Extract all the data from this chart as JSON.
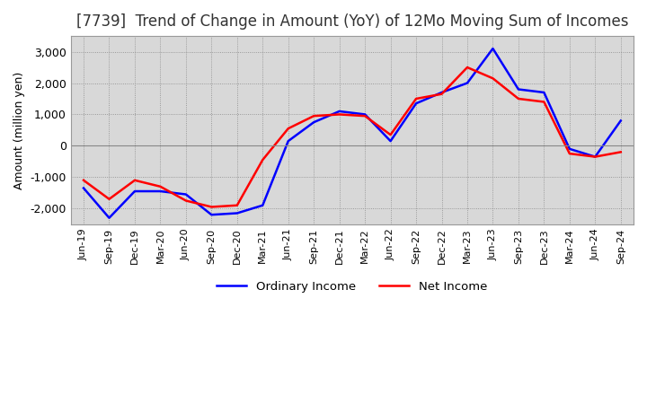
{
  "title": "[7739]  Trend of Change in Amount (YoY) of 12Mo Moving Sum of Incomes",
  "ylabel": "Amount (million yen)",
  "x_labels": [
    "Jun-19",
    "Sep-19",
    "Dec-19",
    "Mar-20",
    "Jun-20",
    "Sep-20",
    "Dec-20",
    "Mar-21",
    "Jun-21",
    "Sep-21",
    "Dec-21",
    "Mar-22",
    "Jun-22",
    "Sep-22",
    "Dec-22",
    "Mar-23",
    "Jun-23",
    "Sep-23",
    "Dec-23",
    "Mar-24",
    "Jun-24",
    "Sep-24"
  ],
  "ordinary_income": [
    -1350,
    -2300,
    -1450,
    -1450,
    -1550,
    -2200,
    -2150,
    -1900,
    150,
    750,
    1100,
    1000,
    150,
    1350,
    1700,
    2000,
    3100,
    1800,
    1700,
    -100,
    -350,
    800
  ],
  "net_income": [
    -1100,
    -1700,
    -1100,
    -1300,
    -1750,
    -1950,
    -1900,
    -450,
    550,
    950,
    1000,
    950,
    350,
    1500,
    1650,
    2500,
    2150,
    1500,
    1400,
    -250,
    -350,
    -200
  ],
  "ordinary_color": "#0000FF",
  "net_color": "#FF0000",
  "ylim": [
    -2500,
    3500
  ],
  "yticks": [
    -2000,
    -1000,
    0,
    1000,
    2000,
    3000
  ],
  "background_color": "#FFFFFF",
  "plot_bg_color": "#D8D8D8",
  "grid_color": "#888888",
  "title_fontsize": 12,
  "legend_labels": [
    "Ordinary Income",
    "Net Income"
  ]
}
